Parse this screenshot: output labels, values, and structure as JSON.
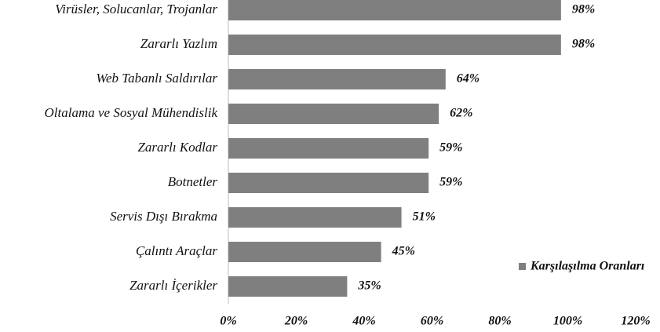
{
  "chart_data": {
    "type": "bar",
    "orientation": "horizontal",
    "categories": [
      "Virüsler, Solucanlar, Trojanlar",
      "Zararlı Yazlım",
      "Web Tabanlı Saldırılar",
      "Oltalama ve Sosyal Mühendislik",
      "Zararlı Kodlar",
      "Botnetler",
      "Servis Dışı Bırakma",
      "Çalıntı Araçlar",
      "Zararlı İçerikler"
    ],
    "series": [
      {
        "name": "Karşılaşılma Oranları",
        "color": "#7f7f7f",
        "values": [
          98,
          98,
          64,
          62,
          59,
          59,
          51,
          45,
          35
        ],
        "value_labels": [
          "98%",
          "98%",
          "64%",
          "62%",
          "59%",
          "59%",
          "51%",
          "45%",
          "35%"
        ]
      }
    ],
    "xlim": [
      0,
      120
    ],
    "xticks": [
      {
        "value": 0,
        "label": "0%"
      },
      {
        "value": 20,
        "label": "20%"
      },
      {
        "value": 40,
        "label": "40%"
      },
      {
        "value": 60,
        "label": "60%"
      },
      {
        "value": 80,
        "label": "80%"
      },
      {
        "value": 100,
        "label": "100%"
      },
      {
        "value": 120,
        "label": "120%"
      }
    ],
    "legend": "right"
  }
}
